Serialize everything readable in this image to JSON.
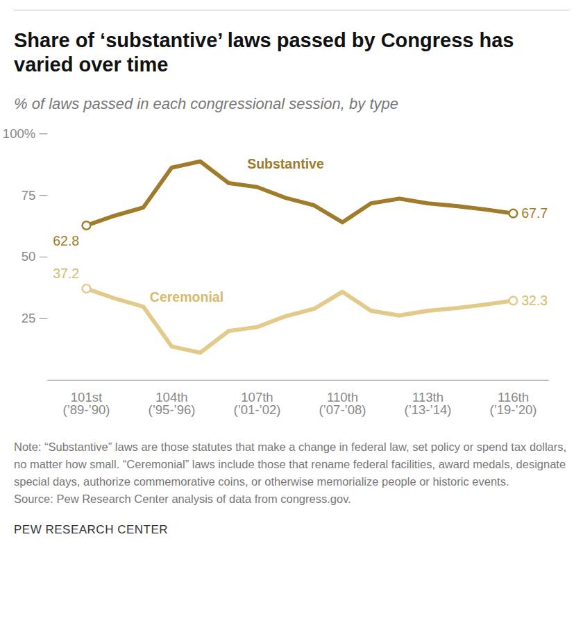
{
  "chart_data": {
    "type": "line",
    "title": "Share of ‘substantive’ laws passed by Congress has varied over time",
    "subtitle": "% of laws passed in each congressional session, by type",
    "note": "Note: “Substantive” laws are those statutes that make a change in federal law, set policy or spend tax dollars, no matter how small. “Ceremonial” laws include those that rename federal facilities, award medals, designate special days, authorize commemorative coins, or otherwise memorialize people or historic events.",
    "source": "Source: Pew Research Center analysis of data from congress.gov.",
    "credit": "PEW RESEARCH CENTER",
    "categories": [
      "101st\n(’89-’90)",
      null,
      null,
      "104th\n(’95-’96)",
      null,
      null,
      "107th\n(’01-’02)",
      null,
      null,
      "110th\n(’07-’08)",
      null,
      null,
      "113th\n(’13-’14)",
      null,
      null,
      "116th\n(’19-’20)"
    ],
    "series": [
      {
        "name": "Substantive",
        "color": "#a07b2a",
        "marker": "open_circle_ends",
        "values": [
          62.8,
          66.8,
          70.1,
          86.3,
          88.8,
          80.0,
          78.4,
          74.0,
          71.0,
          64.1,
          71.8,
          73.7,
          71.8,
          70.7,
          69.3,
          67.7
        ],
        "value_labels": [
          "62.8",
          null,
          null,
          null,
          null,
          null,
          null,
          null,
          null,
          null,
          null,
          null,
          null,
          null,
          null,
          "67.7"
        ]
      },
      {
        "name": "Ceremonial",
        "color": "#e3c98a",
        "marker": "open_circle_ends",
        "values": [
          37.2,
          33.2,
          29.9,
          13.7,
          11.2,
          20.0,
          21.6,
          26.0,
          29.0,
          35.9,
          28.2,
          26.3,
          28.2,
          29.3,
          30.7,
          32.3
        ],
        "value_labels": [
          "37.2",
          null,
          null,
          null,
          null,
          null,
          null,
          null,
          null,
          null,
          null,
          null,
          null,
          null,
          null,
          "32.3"
        ]
      }
    ],
    "ylim": [
      0,
      100
    ],
    "yticks": [
      25,
      50,
      75,
      {
        "value": 100,
        "label": "100%"
      }
    ],
    "grid": false
  }
}
